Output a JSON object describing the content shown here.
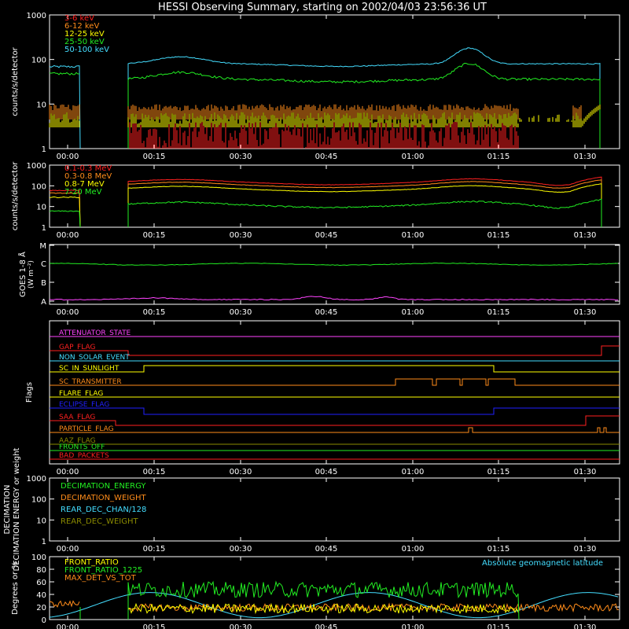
{
  "title": "HESSI Observing Summary, starting on 2002/04/03 23:56:36 UT",
  "time_ticks": [
    "00:00",
    "00:15",
    "00:30",
    "00:45",
    "01:00",
    "01:15",
    "01:30"
  ],
  "colors": {
    "red": "#ff2020",
    "orange": "#ff8c1a",
    "yellow": "#ffff00",
    "green": "#22ee22",
    "cyan": "#44ddff",
    "magenta": "#ff44ff",
    "blue": "#2020ff",
    "olive": "#8b8b00",
    "white": "#ffffff"
  },
  "chart_data": [
    {
      "id": "lowE",
      "type": "line",
      "ylabel": "counts/s/detector",
      "yscale": "log",
      "ylim": [
        1,
        1000
      ],
      "ytick_labels": [
        "1",
        "10",
        "100",
        "1000"
      ],
      "series": [
        {
          "name": "3-6 keV",
          "color": "#ff2020"
        },
        {
          "name": "6-12 keV",
          "color": "#ff8c1a"
        },
        {
          "name": "12-25 keV",
          "color": "#ffff00"
        },
        {
          "name": "25-50 keV",
          "color": "#22ee22"
        },
        {
          "name": "50-100 keV",
          "color": "#44ddff"
        }
      ]
    },
    {
      "id": "highE",
      "type": "line",
      "ylabel": "counts/s/detector",
      "yscale": "log",
      "ylim": [
        1,
        1000
      ],
      "ytick_labels": [
        "1",
        "10",
        "100",
        "1000"
      ],
      "series": [
        {
          "name": "0.1-0.3 MeV",
          "color": "#ff2020"
        },
        {
          "name": "0.3-0.8 MeV",
          "color": "#ff8c1a"
        },
        {
          "name": "0.8-7 MeV",
          "color": "#ffff00"
        },
        {
          "name": "7-20 MeV",
          "color": "#22ee22"
        }
      ]
    },
    {
      "id": "goes",
      "type": "line",
      "ylabel": "GOES 1-8 Å",
      "ytick_labels": [
        "A",
        "B",
        "C",
        "M"
      ]
    },
    {
      "id": "flags",
      "type": "line",
      "ylabel": "Flags",
      "series": [
        {
          "name": "ATTENUATOR_STATE",
          "color": "#ff44ff"
        },
        {
          "name": "GAP_FLAG",
          "color": "#ff2020"
        },
        {
          "name": "NON_SOLAR_EVENT",
          "color": "#44ddff"
        },
        {
          "name": "SC_IN_SUNLIGHT",
          "color": "#ffff00"
        },
        {
          "name": "SC_TRANSMITTER",
          "color": "#ff8c1a"
        },
        {
          "name": "FLARE_FLAG",
          "color": "#ffff00"
        },
        {
          "name": "ECLIPSE_FLAG",
          "color": "#2020ff"
        },
        {
          "name": "SAA_FLAG",
          "color": "#ff2020"
        },
        {
          "name": "PARTICLE_FLAG",
          "color": "#ff8c1a"
        },
        {
          "name": "AAZ_FLAG",
          "color": "#8b8b00"
        },
        {
          "name": "FRONTS_OFF",
          "color": "#22ee22"
        },
        {
          "name": "BAD_PACKETS",
          "color": "#ff2020"
        }
      ]
    },
    {
      "id": "decim",
      "type": "line",
      "ylabel": "DECIMATION ENERGY or weight",
      "yscale": "log",
      "ylim": [
        1,
        1000
      ],
      "ytick_labels": [
        "1",
        "10",
        "100",
        "1000"
      ],
      "series": [
        {
          "name": "DECIMATION_ENERGY",
          "color": "#22ee22"
        },
        {
          "name": "DECIMATION_WEIGHT",
          "color": "#ff8c1a"
        },
        {
          "name": "REAR_DEC_CHAN/128",
          "color": "#44ddff"
        },
        {
          "name": "REAR_DEC_WEIGHT",
          "color": "#8b8b00"
        }
      ]
    },
    {
      "id": "ratio",
      "type": "line",
      "ylabel": "Degrees or %",
      "ylim": [
        0,
        100
      ],
      "ytick_labels": [
        "0",
        "20",
        "40",
        "60",
        "80",
        "100"
      ],
      "annotation": "Absolute geomagnetic latitude",
      "series": [
        {
          "name": "FRONT_RATIO",
          "color": "#ffff00"
        },
        {
          "name": "FRONT_RATIO_1225",
          "color": "#22ee22"
        },
        {
          "name": "MAX_DET_VS_TOT",
          "color": "#ff8c1a"
        }
      ]
    }
  ]
}
